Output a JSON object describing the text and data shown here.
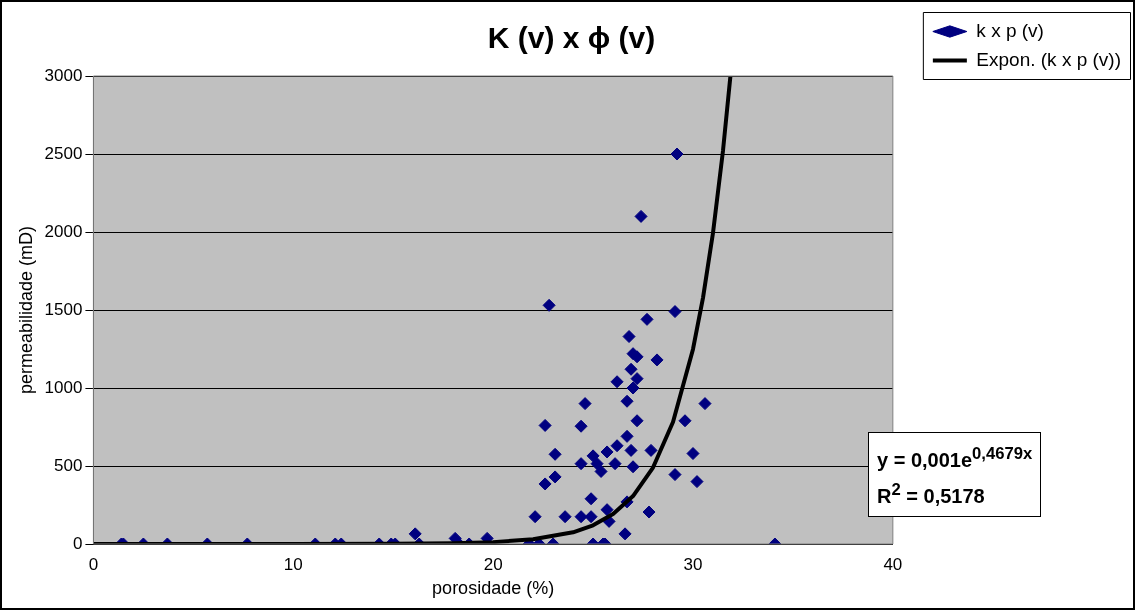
{
  "chart_data": {
    "type": "scatter",
    "title": "K (v) x ϕ (v)",
    "xlabel": "porosidade (%)",
    "ylabel": "permeabilidade (mD)",
    "xlim": [
      0,
      40
    ],
    "xticks": [
      0,
      10,
      20,
      30,
      40
    ],
    "ylim": [
      0,
      3000
    ],
    "yticks": [
      0,
      500,
      1000,
      1500,
      2000,
      2500,
      3000
    ],
    "grid": "y",
    "legend": "top right",
    "annotations": [
      "y = 0,001e$^{0,4679x}$",
      "R$^{2}$ = 0,5178"
    ],
    "series": [
      {
        "name": "k x p (v)",
        "type": "scatter",
        "color": "#000080",
        "marker": "diamond",
        "x": [
          1.4,
          1.5,
          2.5,
          3.7,
          5.7,
          7.7,
          11.1,
          12.1,
          12.4,
          14.3,
          14.9,
          15.1,
          16.1,
          16.3,
          18.1,
          18.3,
          18.8,
          19.7,
          29.2,
          27.4,
          22.8,
          29.1,
          27.7,
          26.8,
          27.0,
          27.2,
          28.2,
          26.9,
          27.2,
          26.2,
          27.0,
          26.7,
          24.6,
          30.6,
          22.6,
          24.4,
          27.2,
          29.6,
          26.7,
          26.2,
          26.9,
          27.9,
          30.0,
          23.1,
          25.0,
          25.7,
          24.4,
          25.2,
          25.4,
          26.1,
          27.0,
          29.1,
          30.2,
          23.1,
          22.6,
          24.9,
          26.7,
          27.8,
          25.7,
          22.1,
          23.6,
          24.4,
          24.9,
          25.8,
          26.6,
          21.8,
          22.3,
          23.0,
          25.0,
          25.5,
          25.6,
          34.1
        ],
        "values": [
          0,
          0,
          0,
          0,
          0,
          0,
          0,
          0,
          0,
          0,
          0,
          0,
          65,
          0,
          36,
          0,
          0,
          36,
          2500,
          2100,
          1530,
          1490,
          1440,
          1330,
          1220,
          1200,
          1180,
          1120,
          1060,
          1040,
          1000,
          915,
          900,
          900,
          760,
          755,
          790,
          790,
          690,
          630,
          600,
          600,
          580,
          575,
          565,
          590,
          515,
          515,
          465,
          515,
          495,
          445,
          400,
          430,
          385,
          290,
          270,
          205,
          220,
          175,
          175,
          175,
          175,
          145,
          65,
          0,
          0,
          0,
          0,
          0,
          0,
          0
        ]
      },
      {
        "name": "Expon. (k x p (v))",
        "type": "line",
        "color": "#000000",
        "marker": "none",
        "line_style": "solid",
        "x": [
          0,
          5,
          10,
          15,
          18,
          20,
          22,
          24,
          25,
          26,
          27,
          28,
          29,
          30,
          30.5,
          31,
          31.5,
          31.87
        ],
        "values": [
          0,
          0,
          0,
          1,
          5,
          12,
          30,
          75,
          120,
          192,
          307,
          490,
          782,
          1249,
          1578,
          1994,
          2520,
          2997
        ]
      }
    ]
  }
}
